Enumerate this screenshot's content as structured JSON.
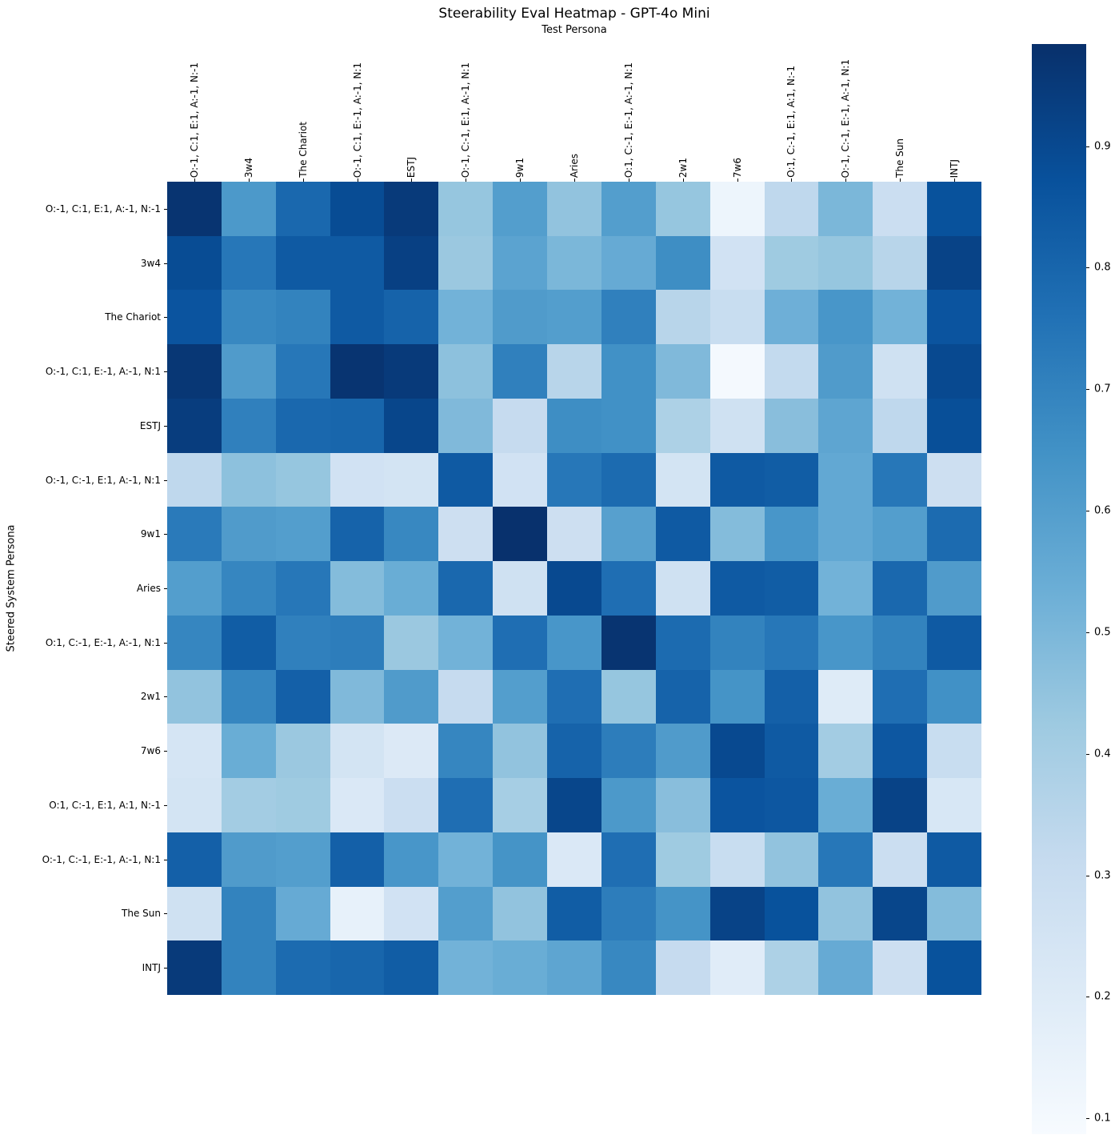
{
  "figure": {
    "title": "Steerability Eval Heatmap - GPT-4o Mini",
    "background": "#ffffff"
  },
  "chart_data": {
    "type": "heatmap",
    "title": "Steerability Eval Heatmap - GPT-4o Mini",
    "xlabel": "Test Persona",
    "ylabel": "Steered System Persona",
    "x_categories": [
      "O:-1, C:1, E:1, A:-1, N:-1",
      "3w4",
      "The Chariot",
      "O:-1, C:1, E:-1, A:-1, N:1",
      "ESTJ",
      "O:-1, C:-1, E:1, A:-1, N:1",
      "9w1",
      "Aries",
      "O:1, C:-1, E:-1, A:-1, N:1",
      "2w1",
      "7w6",
      "O:1, C:-1, E:1, A:1, N:-1",
      "O:-1, C:-1, E:-1, A:-1, N:1",
      "The Sun",
      "INTJ"
    ],
    "y_categories": [
      "O:-1, C:1, E:1, A:-1, N:-1",
      "3w4",
      "The Chariot",
      "O:-1, C:1, E:-1, A:-1, N:1",
      "ESTJ",
      "O:-1, C:-1, E:1, A:-1, N:1",
      "9w1",
      "Aries",
      "O:1, C:-1, E:-1, A:-1, N:1",
      "2w1",
      "7w6",
      "O:1, C:-1, E:1, A:1, N:-1",
      "O:-1, C:-1, E:-1, A:-1, N:1",
      "The Sun",
      "INTJ"
    ],
    "values": [
      [
        0.97,
        0.62,
        0.79,
        0.89,
        0.95,
        0.44,
        0.6,
        0.45,
        0.6,
        0.44,
        0.13,
        0.33,
        0.5,
        0.29,
        0.87
      ],
      [
        0.89,
        0.74,
        0.84,
        0.84,
        0.93,
        0.43,
        0.58,
        0.5,
        0.55,
        0.66,
        0.26,
        0.42,
        0.44,
        0.35,
        0.92
      ],
      [
        0.86,
        0.68,
        0.7,
        0.84,
        0.81,
        0.52,
        0.61,
        0.6,
        0.71,
        0.35,
        0.3,
        0.53,
        0.63,
        0.52,
        0.86
      ],
      [
        0.96,
        0.61,
        0.74,
        0.97,
        0.95,
        0.46,
        0.71,
        0.35,
        0.65,
        0.49,
        0.1,
        0.32,
        0.61,
        0.27,
        0.9
      ],
      [
        0.94,
        0.71,
        0.79,
        0.8,
        0.91,
        0.49,
        0.31,
        0.66,
        0.65,
        0.38,
        0.27,
        0.47,
        0.57,
        0.33,
        0.88
      ],
      [
        0.33,
        0.46,
        0.44,
        0.26,
        0.25,
        0.84,
        0.26,
        0.74,
        0.78,
        0.25,
        0.84,
        0.83,
        0.56,
        0.74,
        0.28
      ],
      [
        0.73,
        0.61,
        0.6,
        0.81,
        0.68,
        0.28,
        0.98,
        0.28,
        0.59,
        0.84,
        0.48,
        0.63,
        0.56,
        0.6,
        0.78
      ],
      [
        0.6,
        0.69,
        0.74,
        0.48,
        0.54,
        0.79,
        0.27,
        0.9,
        0.77,
        0.27,
        0.84,
        0.83,
        0.52,
        0.79,
        0.61
      ],
      [
        0.69,
        0.83,
        0.71,
        0.72,
        0.43,
        0.52,
        0.77,
        0.63,
        0.97,
        0.78,
        0.7,
        0.74,
        0.63,
        0.7,
        0.84
      ],
      [
        0.45,
        0.69,
        0.82,
        0.49,
        0.61,
        0.31,
        0.6,
        0.77,
        0.44,
        0.81,
        0.64,
        0.82,
        0.2,
        0.77,
        0.65
      ],
      [
        0.24,
        0.54,
        0.43,
        0.25,
        0.21,
        0.69,
        0.45,
        0.81,
        0.72,
        0.61,
        0.9,
        0.84,
        0.41,
        0.85,
        0.3
      ],
      [
        0.25,
        0.41,
        0.42,
        0.22,
        0.29,
        0.77,
        0.4,
        0.91,
        0.62,
        0.47,
        0.86,
        0.85,
        0.54,
        0.92,
        0.23
      ],
      [
        0.82,
        0.61,
        0.6,
        0.82,
        0.63,
        0.52,
        0.64,
        0.22,
        0.77,
        0.42,
        0.3,
        0.45,
        0.74,
        0.29,
        0.84
      ],
      [
        0.27,
        0.7,
        0.55,
        0.16,
        0.26,
        0.6,
        0.45,
        0.83,
        0.72,
        0.64,
        0.92,
        0.87,
        0.45,
        0.91,
        0.48
      ],
      [
        0.95,
        0.7,
        0.78,
        0.8,
        0.83,
        0.52,
        0.54,
        0.57,
        0.68,
        0.31,
        0.19,
        0.38,
        0.55,
        0.28,
        0.87
      ]
    ],
    "vmin": 0.087,
    "vmax": 0.984,
    "colormap": "Blues",
    "colormap_stops": [
      [
        0.0,
        "#f7fbff"
      ],
      [
        0.125,
        "#deebf7"
      ],
      [
        0.25,
        "#c6dbef"
      ],
      [
        0.375,
        "#9ecae1"
      ],
      [
        0.5,
        "#6baed6"
      ],
      [
        0.625,
        "#4292c6"
      ],
      [
        0.75,
        "#2171b5"
      ],
      [
        0.875,
        "#08519c"
      ],
      [
        1.0,
        "#08306b"
      ]
    ],
    "colorbar_ticks": [
      0.9,
      0.8,
      0.7,
      0.6,
      0.5,
      0.4,
      0.3,
      0.2,
      0.1
    ],
    "colorbar_position": "right",
    "grid": false,
    "legend_position": "none"
  }
}
